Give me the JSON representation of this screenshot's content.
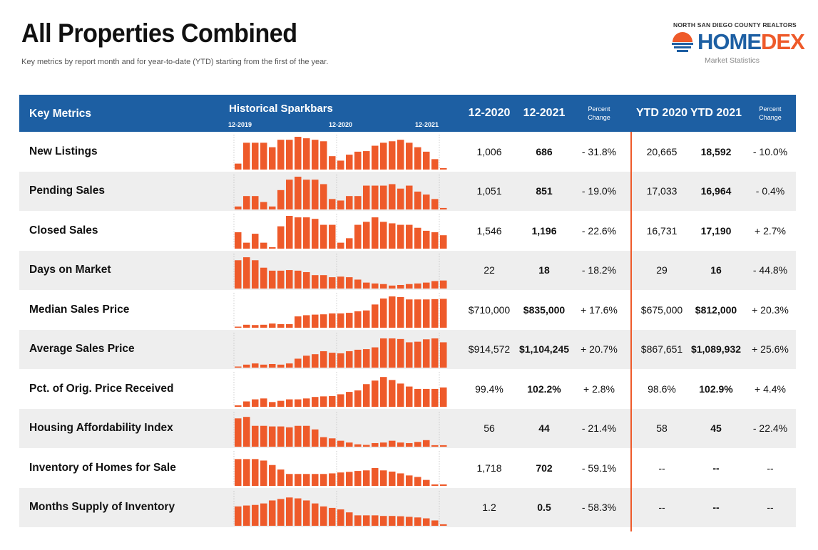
{
  "title": "All Properties Combined",
  "subtitle": "Key metrics by report month and for year-to-date (YTD) starting from the first of the year.",
  "logo": {
    "org": "NORTH SAN DIEGO COUNTY REALTORS",
    "home": "HOME",
    "dex": "DEX",
    "tagline": "Market Statistics"
  },
  "colors": {
    "header_bg": "#1d5fa3",
    "bar": "#ee5a2a",
    "divider": "#ee5a2a",
    "alt_row": "#eeeeee"
  },
  "header": {
    "key_metrics": "Key Metrics",
    "sparkbars": "Historical Sparkbars",
    "tick_1": "12-2019",
    "tick_2": "12-2020",
    "tick_3": "12-2021",
    "col_2020": "12-2020",
    "col_2021": "12-2021",
    "pct_line1": "Percent",
    "pct_line2": "Change",
    "ytd_2020": "YTD 2020",
    "ytd_2021": "YTD 2021",
    "ytd_pct_line1": "Percent",
    "ytd_pct_line2": "Change"
  },
  "chart_data": {
    "type": "bar",
    "title": "Historical Sparkbars",
    "categories": [
      "12-2019",
      "1-2020",
      "2-2020",
      "3-2020",
      "4-2020",
      "5-2020",
      "6-2020",
      "7-2020",
      "8-2020",
      "9-2020",
      "10-2020",
      "11-2020",
      "12-2020",
      "1-2021",
      "2-2021",
      "3-2021",
      "4-2021",
      "5-2021",
      "6-2021",
      "7-2021",
      "8-2021",
      "9-2021",
      "10-2021",
      "11-2021",
      "12-2021"
    ],
    "series": [
      {
        "name": "New Listings",
        "values": [
          0.2,
          0.9,
          0.9,
          0.9,
          0.75,
          1.0,
          1.0,
          1.1,
          1.05,
          1.0,
          0.95,
          0.45,
          0.3,
          0.5,
          0.6,
          0.62,
          0.8,
          0.9,
          0.95,
          1.0,
          0.9,
          0.75,
          0.6,
          0.35,
          0.05
        ]
      },
      {
        "name": "Pending Sales",
        "values": [
          0.1,
          0.45,
          0.45,
          0.25,
          0.1,
          0.65,
          1.0,
          1.1,
          1.0,
          1.0,
          0.85,
          0.35,
          0.3,
          0.45,
          0.45,
          0.8,
          0.8,
          0.8,
          0.85,
          0.7,
          0.8,
          0.6,
          0.5,
          0.35,
          0.05
        ]
      },
      {
        "name": "Closed Sales",
        "values": [
          0.55,
          0.2,
          0.5,
          0.2,
          0.05,
          0.75,
          1.1,
          1.05,
          1.05,
          1.0,
          0.8,
          0.8,
          0.2,
          0.35,
          0.8,
          0.9,
          1.05,
          0.9,
          0.85,
          0.8,
          0.8,
          0.7,
          0.6,
          0.55,
          0.45
        ]
      },
      {
        "name": "Days on Market",
        "values": [
          0.95,
          1.05,
          0.95,
          0.7,
          0.6,
          0.6,
          0.62,
          0.6,
          0.55,
          0.45,
          0.45,
          0.38,
          0.4,
          0.38,
          0.3,
          0.2,
          0.17,
          0.15,
          0.1,
          0.12,
          0.15,
          0.17,
          0.2,
          0.25,
          0.27
        ]
      },
      {
        "name": "Median Sales Price",
        "values": [
          0.03,
          0.1,
          0.09,
          0.1,
          0.14,
          0.12,
          0.12,
          0.38,
          0.42,
          0.44,
          0.45,
          0.48,
          0.48,
          0.5,
          0.55,
          0.58,
          0.78,
          0.98,
          1.05,
          1.03,
          0.95,
          0.95,
          0.95,
          0.96,
          0.97
        ]
      },
      {
        "name": "Average Sales Price",
        "values": [
          0.03,
          0.1,
          0.14,
          0.1,
          0.12,
          0.1,
          0.14,
          0.3,
          0.4,
          0.45,
          0.55,
          0.5,
          0.48,
          0.55,
          0.6,
          0.62,
          0.68,
          0.98,
          0.98,
          0.96,
          0.85,
          0.87,
          0.95,
          0.98,
          0.85
        ]
      },
      {
        "name": "Pct. of Orig. Price Received",
        "values": [
          0.05,
          0.18,
          0.25,
          0.28,
          0.16,
          0.2,
          0.25,
          0.25,
          0.28,
          0.33,
          0.35,
          0.36,
          0.42,
          0.5,
          0.55,
          0.76,
          0.88,
          1.0,
          0.9,
          0.78,
          0.68,
          0.6,
          0.6,
          0.6,
          0.65
        ]
      },
      {
        "name": "Housing Affordability Index",
        "values": [
          0.95,
          1.0,
          0.7,
          0.7,
          0.68,
          0.68,
          0.65,
          0.7,
          0.7,
          0.58,
          0.32,
          0.28,
          0.2,
          0.14,
          0.08,
          0.06,
          0.12,
          0.14,
          0.2,
          0.14,
          0.12,
          0.16,
          0.22,
          0.05,
          0.05
        ]
      },
      {
        "name": "Inventory of Homes for Sale",
        "values": [
          0.9,
          0.9,
          0.9,
          0.85,
          0.7,
          0.55,
          0.4,
          0.4,
          0.4,
          0.4,
          0.4,
          0.42,
          0.45,
          0.47,
          0.5,
          0.52,
          0.6,
          0.52,
          0.48,
          0.42,
          0.35,
          0.3,
          0.2,
          0.05,
          0.05
        ]
      },
      {
        "name": "Months Supply of Inventory",
        "values": [
          0.65,
          0.68,
          0.7,
          0.75,
          0.85,
          0.9,
          0.95,
          0.92,
          0.85,
          0.75,
          0.65,
          0.6,
          0.55,
          0.45,
          0.35,
          0.35,
          0.35,
          0.33,
          0.33,
          0.32,
          0.3,
          0.28,
          0.25,
          0.18,
          0.05
        ]
      }
    ]
  },
  "rows": [
    {
      "label": "New Listings",
      "v2020": "1,006",
      "v2021": "686",
      "pct": "- 31.8%",
      "ytd2020": "20,665",
      "ytd2021": "18,592",
      "ytdpct": "- 10.0%"
    },
    {
      "label": "Pending Sales",
      "v2020": "1,051",
      "v2021": "851",
      "pct": "- 19.0%",
      "ytd2020": "17,033",
      "ytd2021": "16,964",
      "ytdpct": "- 0.4%"
    },
    {
      "label": "Closed Sales",
      "v2020": "1,546",
      "v2021": "1,196",
      "pct": "- 22.6%",
      "ytd2020": "16,731",
      "ytd2021": "17,190",
      "ytdpct": "+ 2.7%"
    },
    {
      "label": "Days on Market",
      "v2020": "22",
      "v2021": "18",
      "pct": "- 18.2%",
      "ytd2020": "29",
      "ytd2021": "16",
      "ytdpct": "- 44.8%"
    },
    {
      "label": "Median Sales Price",
      "v2020": "$710,000",
      "v2021": "$835,000",
      "pct": "+ 17.6%",
      "ytd2020": "$675,000",
      "ytd2021": "$812,000",
      "ytdpct": "+ 20.3%"
    },
    {
      "label": "Average Sales Price",
      "v2020": "$914,572",
      "v2021": "$1,104,245",
      "pct": "+ 20.7%",
      "ytd2020": "$867,651",
      "ytd2021": "$1,089,932",
      "ytdpct": "+ 25.6%"
    },
    {
      "label": "Pct. of Orig. Price Received",
      "v2020": "99.4%",
      "v2021": "102.2%",
      "pct": "+ 2.8%",
      "ytd2020": "98.6%",
      "ytd2021": "102.9%",
      "ytdpct": "+ 4.4%"
    },
    {
      "label": "Housing Affordability Index",
      "v2020": "56",
      "v2021": "44",
      "pct": "- 21.4%",
      "ytd2020": "58",
      "ytd2021": "45",
      "ytdpct": "- 22.4%"
    },
    {
      "label": "Inventory of Homes for Sale",
      "v2020": "1,718",
      "v2021": "702",
      "pct": "- 59.1%",
      "ytd2020": "--",
      "ytd2021": "--",
      "ytdpct": "--"
    },
    {
      "label": "Months Supply of Inventory",
      "v2020": "1.2",
      "v2021": "0.5",
      "pct": "- 58.3%",
      "ytd2020": "--",
      "ytd2021": "--",
      "ytdpct": "--"
    }
  ]
}
